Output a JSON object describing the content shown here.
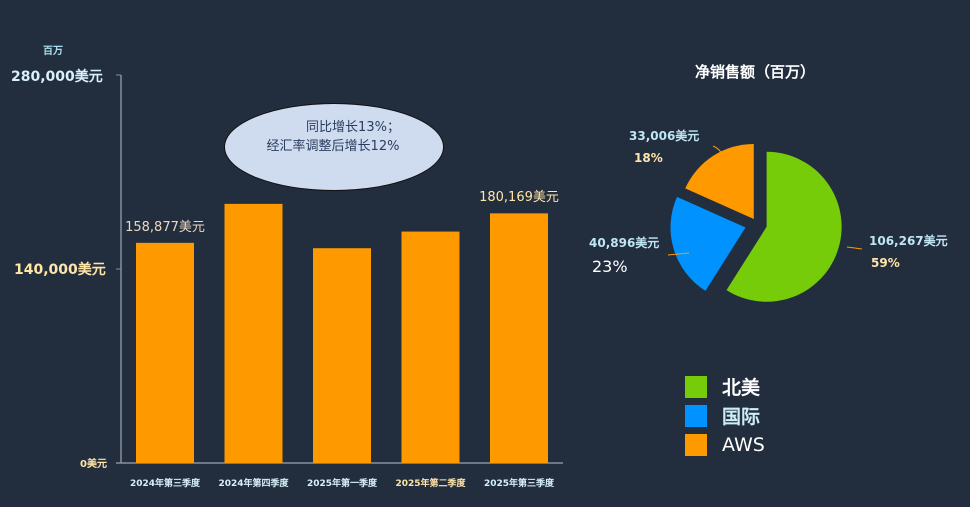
{
  "chart_data": [
    {
      "type": "bar",
      "unit_label": "百万",
      "yticks": [
        "0美元",
        "140,000美元",
        "280,000美元"
      ],
      "ylim": [
        0,
        280000
      ],
      "categories": [
        "2024年第三季度",
        "2024年第四季度",
        "2025年第一季度",
        "2025年第二季度",
        "2025年第三季度"
      ],
      "values": [
        158877,
        187000,
        155000,
        167000,
        180169
      ],
      "data_labels": [
        "158,877美元",
        "",
        "",
        "",
        "180,169美元"
      ],
      "annotation": [
        "同比增长13%；",
        "经汇率调整后增长12%"
      ],
      "color": "#ff9900"
    },
    {
      "type": "pie",
      "title": "净销售额（百万）",
      "slices": [
        {
          "name": "北美",
          "value": 106267,
          "label": "106,267美元",
          "pct": "59%",
          "color": "#77cc0a"
        },
        {
          "name": "国际",
          "value": 40896,
          "label": "40,896美元",
          "pct": "23%",
          "color": "#0092ff"
        },
        {
          "name": "AWS",
          "value": 33006,
          "label": "33,006美元",
          "pct": "18%",
          "color": "#ff9900"
        }
      ]
    }
  ]
}
